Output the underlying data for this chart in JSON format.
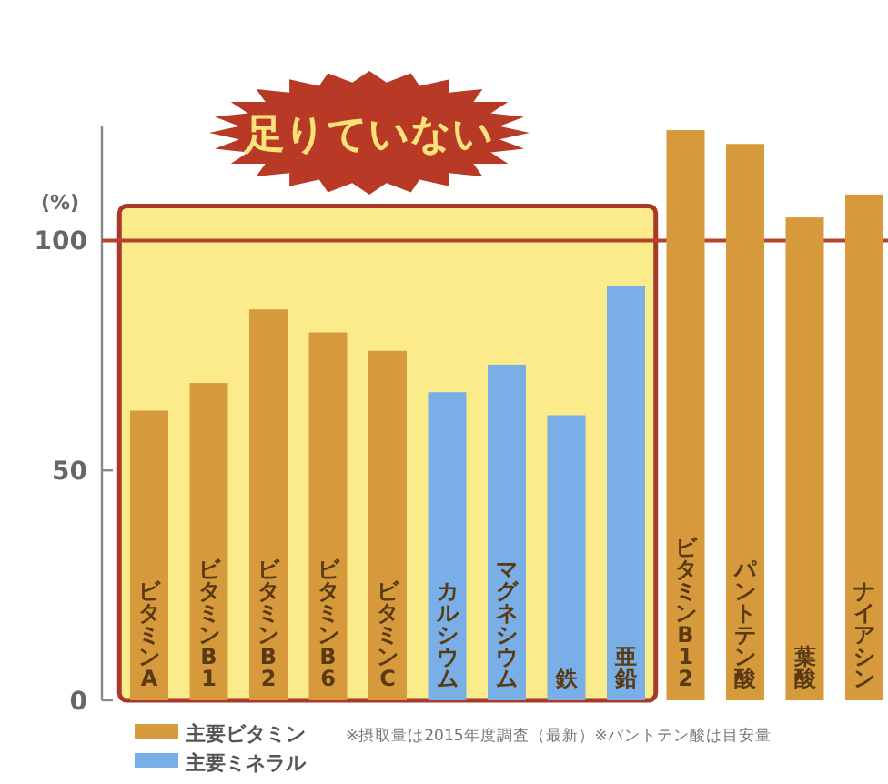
{
  "chart_data": {
    "type": "bar",
    "ylabel": "(%)",
    "categories": [
      "ビタミンA",
      "ビタミンB1",
      "ビタミンB2",
      "ビタミンB6",
      "ビタミンC",
      "カルシウム",
      "マグネシウム",
      "鉄",
      "亜鉛",
      "ビタミンB12",
      "パントテン酸",
      "葉酸",
      "ナイアシン"
    ],
    "series": [
      {
        "name": "主要ビタミン",
        "color": "#d69a3c",
        "values": [
          63,
          69,
          85,
          80,
          76,
          null,
          null,
          null,
          null,
          124,
          121,
          105,
          110
        ]
      },
      {
        "name": "主要ミネラル",
        "color": "#79aee6",
        "values": [
          null,
          null,
          null,
          null,
          null,
          67,
          73,
          62,
          90,
          null,
          null,
          null,
          null
        ]
      }
    ],
    "ylim": [
      0,
      125
    ],
    "yticks": [
      0,
      50,
      100
    ],
    "ref_lines": [
      {
        "axis": "y",
        "value": 100,
        "color": "#b5452a"
      }
    ],
    "bands": [
      {
        "axis": "x",
        "from": "ビタミンA",
        "to": "亜鉛",
        "label": "足りていない",
        "color": "#fbeb8a"
      }
    ],
    "legend": "bottom left",
    "annotations": [
      "※摂取量は2015年度調査（最新）※パントテン酸は目安量"
    ]
  }
}
